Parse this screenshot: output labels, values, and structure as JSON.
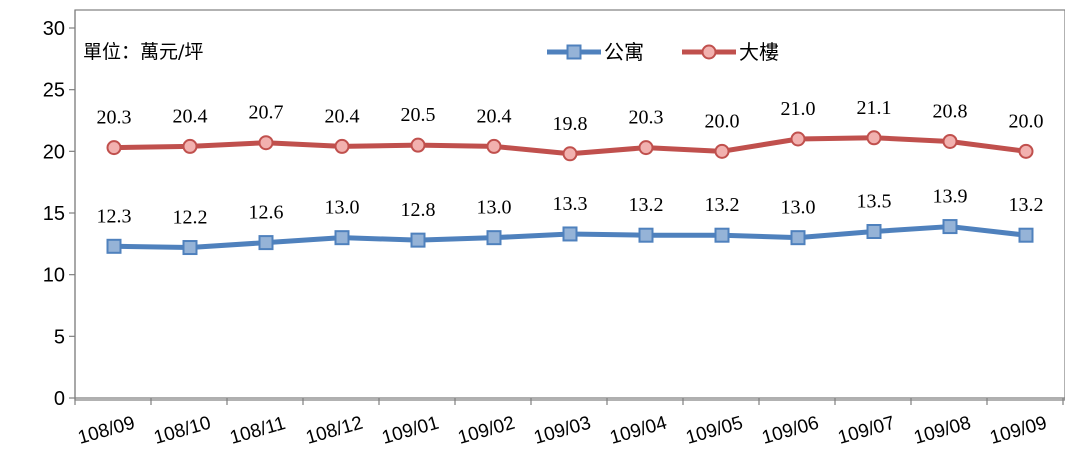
{
  "chart_data": {
    "type": "line",
    "unit_note": "單位：萬元/坪",
    "categories": [
      "108/09",
      "108/10",
      "108/11",
      "108/12",
      "109/01",
      "109/02",
      "109/03",
      "109/04",
      "109/05",
      "109/06",
      "109/07",
      "109/08",
      "109/09"
    ],
    "series": [
      {
        "name": "公寓",
        "color": "#4F81BD",
        "marker_fill": "#95B3D7",
        "values": [
          12.3,
          12.2,
          12.6,
          13.0,
          12.8,
          13.0,
          13.3,
          13.2,
          13.2,
          13.0,
          13.5,
          13.9,
          13.2
        ]
      },
      {
        "name": "大樓",
        "color": "#C0504D",
        "marker_fill": "#F2B1AF",
        "values": [
          20.3,
          20.4,
          20.7,
          20.4,
          20.5,
          20.4,
          19.8,
          20.3,
          20.0,
          21.0,
          21.1,
          20.8,
          20.0
        ]
      }
    ],
    "ylim": [
      0,
      30
    ],
    "yticks": [
      0,
      5,
      10,
      15,
      20,
      25,
      30
    ],
    "legend_position": "top-right",
    "grid": false
  }
}
